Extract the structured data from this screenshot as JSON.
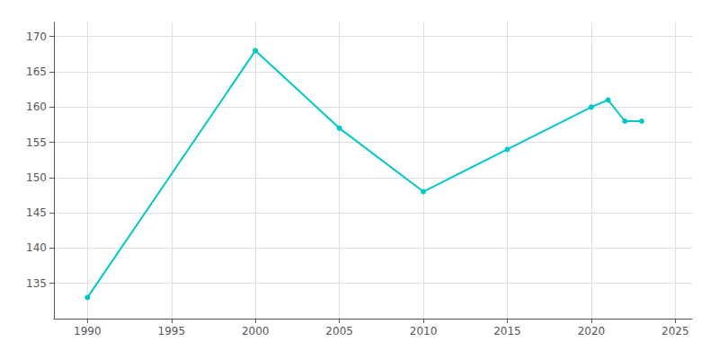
{
  "chart_data": {
    "type": "line",
    "x": [
      1990,
      2000,
      2005,
      2010,
      2015,
      2020,
      2021,
      2022,
      2023
    ],
    "values": [
      133,
      168,
      157,
      148,
      154,
      160,
      161,
      158,
      158
    ],
    "color": "#00C8C8",
    "marker": "circle",
    "xlim": [
      1988,
      2026
    ],
    "xticks": [
      1990,
      1995,
      2000,
      2005,
      2010,
      2015,
      2020,
      2025
    ],
    "ylim": [
      130,
      172
    ],
    "yticks": [
      135,
      140,
      145,
      150,
      155,
      160,
      165,
      170
    ],
    "grid": true
  }
}
